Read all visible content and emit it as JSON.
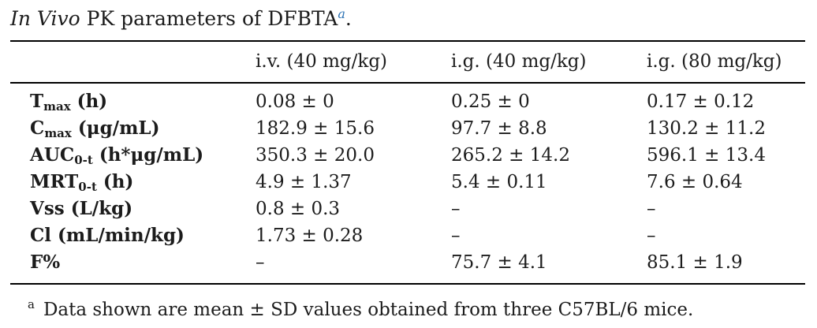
{
  "page_title": {
    "italic": "In Vivo",
    "rest": " PK parameters of DFBTA",
    "superscript": "a",
    "suffix": "."
  },
  "table": {
    "column_headers": [
      "i.v. (40 mg/kg)",
      "i.g. (40 mg/kg)",
      "i.g. (80 mg/kg)"
    ],
    "rows": [
      {
        "param": "T",
        "sub": "max",
        "unit": "(h)",
        "values": [
          "0.08 ± 0",
          "0.25 ± 0",
          "0.17 ± 0.12"
        ]
      },
      {
        "param": "C",
        "sub": "max",
        "unit": "(μg/mL)",
        "values": [
          "182.9 ± 15.6",
          "97.7 ± 8.8",
          "130.2 ± 11.2"
        ]
      },
      {
        "param": "AUC",
        "sub": "0-t",
        "unit": "(h*μg/mL)",
        "values": [
          "350.3 ± 20.0",
          "265.2 ± 14.2",
          "596.1 ± 13.4"
        ]
      },
      {
        "param": "MRT",
        "sub": "0-t",
        "unit": "(h)",
        "values": [
          "4.9 ± 1.37",
          "5.4 ± 0.11",
          "7.6 ± 0.64"
        ]
      },
      {
        "param": "Vss",
        "sub": "",
        "unit": "(L/kg)",
        "values": [
          "0.8 ± 0.3",
          "–",
          "–"
        ]
      },
      {
        "param": "Cl",
        "sub": "",
        "unit": "(mL/min/kg)",
        "values": [
          "1.73 ± 0.28",
          "–",
          "–"
        ]
      },
      {
        "param": "F%",
        "sub": "",
        "unit": "",
        "values": [
          "–",
          "75.7 ± 4.1",
          "85.1 ± 1.9"
        ]
      }
    ]
  },
  "footnote": {
    "marker": "a",
    "text": "Data shown are mean ± SD values obtained from three C57BL/6 mice."
  },
  "colors": {
    "title_superscript": "#2e74b5",
    "text": "#1c1c1c",
    "rule": "#000000"
  }
}
